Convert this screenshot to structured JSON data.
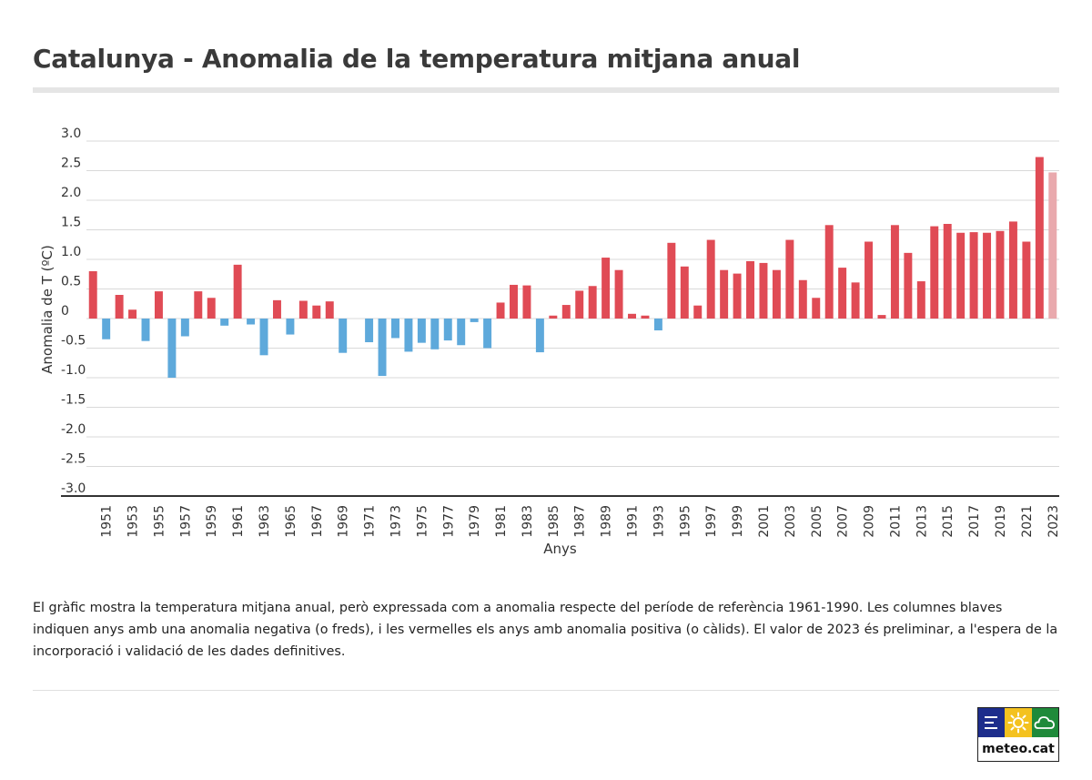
{
  "header": {
    "title": "Catalunya - Anomalia de la temperatura mitjana anual"
  },
  "chart_data": {
    "type": "bar",
    "title": "Catalunya - Anomalia de la temperatura mitjana anual",
    "xlabel": "Anys",
    "ylabel": "Anomalia de T (ºC)",
    "ylim": [
      -3.0,
      3.0
    ],
    "yticks": [
      "3.0",
      "2.5",
      "2.0",
      "1.5",
      "1.0",
      "0.5",
      "0",
      "-0.5",
      "-1.0",
      "-1.5",
      "-2.0",
      "-2.5",
      "-3.0"
    ],
    "grid": true,
    "legend": "none",
    "colors": {
      "positive": "#e04b55",
      "negative": "#5ea9db",
      "preliminary": "#e9a9ad"
    },
    "categories": [
      1950,
      1951,
      1952,
      1953,
      1954,
      1955,
      1956,
      1957,
      1958,
      1959,
      1960,
      1961,
      1962,
      1963,
      1964,
      1965,
      1966,
      1967,
      1968,
      1969,
      1970,
      1971,
      1972,
      1973,
      1974,
      1975,
      1976,
      1977,
      1978,
      1979,
      1980,
      1981,
      1982,
      1983,
      1984,
      1985,
      1986,
      1987,
      1988,
      1989,
      1990,
      1991,
      1992,
      1993,
      1994,
      1995,
      1996,
      1997,
      1998,
      1999,
      2000,
      2001,
      2002,
      2003,
      2004,
      2005,
      2006,
      2007,
      2008,
      2009,
      2010,
      2011,
      2012,
      2013,
      2014,
      2015,
      2016,
      2017,
      2018,
      2019,
      2020,
      2021,
      2022,
      2023
    ],
    "values": [
      0.8,
      -0.35,
      0.4,
      0.15,
      -0.38,
      0.46,
      -1.0,
      -0.3,
      0.46,
      0.35,
      -0.12,
      0.91,
      -0.1,
      -0.62,
      0.31,
      -0.27,
      0.3,
      0.22,
      0.29,
      -0.58,
      0.0,
      -0.4,
      -0.97,
      -0.33,
      -0.56,
      -0.41,
      -0.52,
      -0.37,
      -0.45,
      -0.06,
      -0.5,
      0.27,
      0.57,
      0.56,
      -0.57,
      0.05,
      0.23,
      0.47,
      0.55,
      1.03,
      0.82,
      0.08,
      0.05,
      -0.2,
      1.28,
      0.88,
      0.22,
      1.33,
      0.82,
      0.76,
      0.97,
      0.94,
      0.82,
      1.33,
      0.65,
      0.35,
      1.58,
      0.86,
      0.61,
      1.3,
      0.06,
      1.58,
      1.11,
      0.63,
      1.56,
      1.6,
      1.45,
      1.46,
      1.45,
      1.48,
      1.64,
      1.3,
      2.73,
      2.47
    ],
    "preliminary": [
      2023
    ]
  },
  "description": {
    "text": "El gràfic mostra la temperatura mitjana anual, però expressada com a anomalia respecte del període de referència 1961-1990. Les columnes blaves indiquen anys amb una anomalia negativa (o freds), i les vermelles els anys amb anomalia positiva (o càlids). El valor de 2023 és preliminar, a l'espera de la incorporació i validació de les dades definitives."
  },
  "logo": {
    "text": "meteo.cat",
    "tile_colors": [
      "#1d2d8c",
      "#f4c21f",
      "#1f8a3a"
    ],
    "icons": [
      "wind-lines-icon",
      "sun-icon",
      "cloud-icon"
    ]
  }
}
